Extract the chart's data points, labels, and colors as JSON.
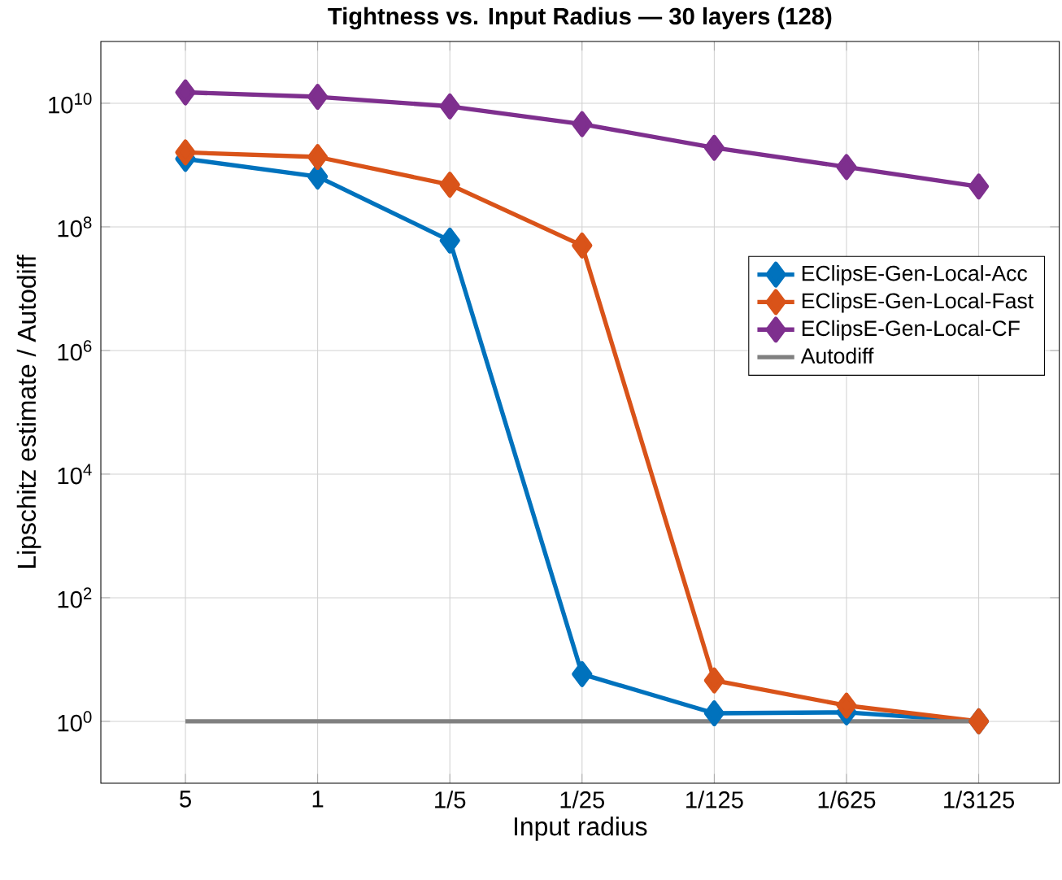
{
  "chart_data": {
    "type": "line",
    "title": "Tightness vs. Input Radius — 30 layers (128)",
    "xlabel": "Input radius",
    "ylabel": "Lipschitz estimate / Autodiff",
    "x": [
      5,
      1,
      0.2,
      0.04,
      0.008,
      0.0016,
      0.00032
    ],
    "series": [
      {
        "name": "EClipsE-Gen-Local-Acc",
        "color": "#0072bd",
        "marker": "diamond",
        "values": [
          1260000000.0,
          650000000.0,
          60000000.0,
          5.8,
          1.35,
          1.4,
          1
        ]
      },
      {
        "name": "EClipsE-Gen-Local-Fast",
        "color": "#d95319",
        "marker": "diamond",
        "values": [
          1600000000.0,
          1350000000.0,
          480000000.0,
          50000000.0,
          4.6,
          1.8,
          1
        ]
      },
      {
        "name": "EClipsE-Gen-Local-CF",
        "color": "#7e2f8e",
        "marker": "diamond",
        "values": [
          15000000000.0,
          12700000000.0,
          8900000000.0,
          4600000000.0,
          1900000000.0,
          930000000.0,
          450000000.0
        ]
      },
      {
        "name": "Autodiff",
        "color": "#808080",
        "marker": "none",
        "values": [
          1,
          1,
          1,
          1,
          1,
          1,
          1
        ]
      }
    ],
    "xlim": [
      14,
      0.00012
    ],
    "ylim": [
      0.1,
      100000000000.0
    ],
    "xticks": [
      5,
      1,
      {
        "value": 0.2,
        "label": "1/5"
      },
      {
        "value": 0.04,
        "label": "1/25"
      },
      {
        "value": 0.008,
        "label": "1/125"
      },
      {
        "value": 0.0016,
        "label": "1/625"
      },
      {
        "value": 0.00032,
        "label": "1/3125"
      }
    ],
    "yticks": [
      {
        "value": 1,
        "label": "10$^{0}$"
      },
      {
        "value": 100,
        "label": "10$^{2}$"
      },
      {
        "value": 10000,
        "label": "10$^{4}$"
      },
      {
        "value": 1000000.0,
        "label": "10$^{6}$"
      },
      {
        "value": 100000000.0,
        "label": "10$^{8}$"
      },
      {
        "value": 10000000000.0,
        "label": "10$^{10}$"
      }
    ],
    "log": "xy",
    "grid": true,
    "legend": "right"
  }
}
